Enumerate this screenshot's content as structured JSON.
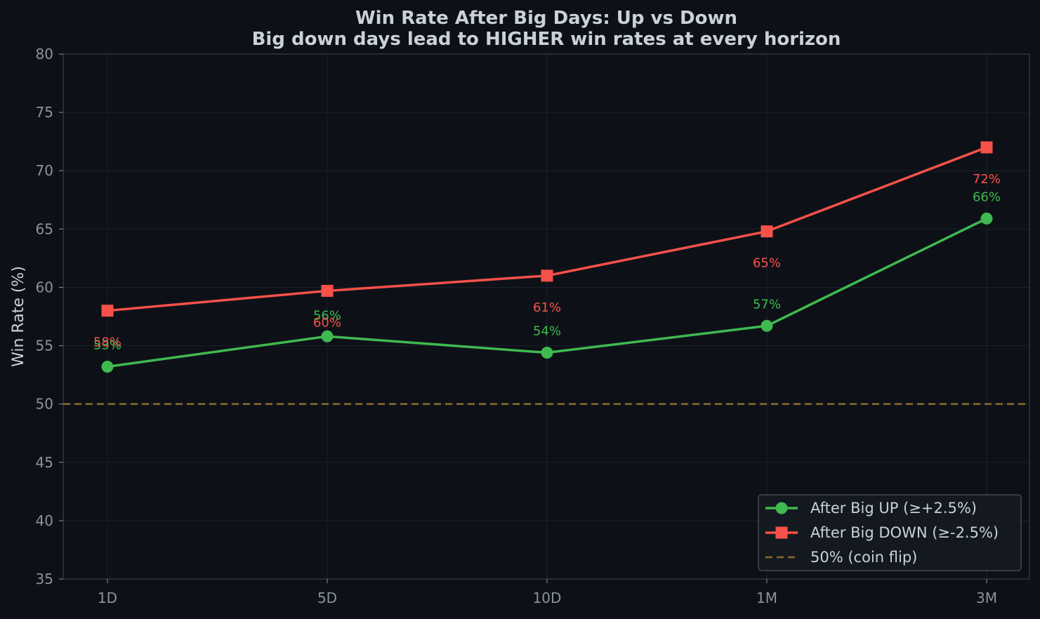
{
  "chart_data": {
    "type": "line",
    "title": "Win Rate After Big Days: Up vs Down",
    "subtitle": "Big down days lead to HIGHER win rates at every horizon",
    "xlabel": "",
    "ylabel": "Win Rate (%)",
    "categories": [
      "1D",
      "5D",
      "10D",
      "1M",
      "3M"
    ],
    "ylim": [
      35,
      80
    ],
    "yticks": [
      35,
      40,
      45,
      50,
      55,
      60,
      65,
      70,
      75,
      80
    ],
    "grid": true,
    "legend_position": "lower-right",
    "series": [
      {
        "name": "After Big UP (≥+2.5%)",
        "color": "#3fb950",
        "marker": "circle",
        "values": [
          53.2,
          55.8,
          54.4,
          56.7,
          65.9
        ],
        "labels": [
          "53%",
          "56%",
          "54%",
          "57%",
          "66%"
        ]
      },
      {
        "name": "After Big DOWN (≥-2.5%)",
        "color": "#f85149",
        "marker": "square",
        "values": [
          58.0,
          59.7,
          61.0,
          64.8,
          72.0
        ],
        "labels": [
          "58%",
          "60%",
          "61%",
          "65%",
          "72%"
        ]
      }
    ],
    "reference_line": {
      "name": "50% (coin flip)",
      "value": 50,
      "color": "#8a6d2b",
      "style": "dashed"
    }
  }
}
